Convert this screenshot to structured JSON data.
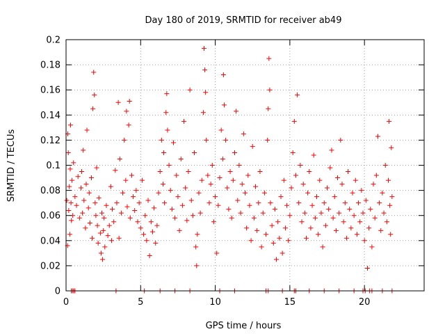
{
  "chart_data": {
    "type": "scatter",
    "title": "Day 180 of 2019, SRMTID for receiver ab49",
    "xlabel": "GPS time / hours",
    "ylabel": "SRMTID / TECUs",
    "xlim": [
      0,
      24
    ],
    "ylim": [
      0,
      0.2
    ],
    "xticks": [
      0,
      5,
      10,
      15,
      20
    ],
    "yticks": [
      0,
      0.02,
      0.04,
      0.06,
      0.08,
      0.1,
      0.12,
      0.14,
      0.16,
      0.18,
      0.2
    ],
    "ytick_labels": [
      "0",
      "0.02",
      "0.04",
      "0.06",
      "0.08",
      "0.1",
      "0.12",
      "0.14",
      "0.16",
      "0.18",
      "0.2"
    ],
    "xtick_labels": [
      "0",
      "5",
      "10",
      "15",
      "20"
    ],
    "grid": true,
    "marker": "+",
    "color": "#ff0000",
    "series": [
      {
        "name": "SRMTID",
        "points": [
          [
            0.05,
            0.072
          ],
          [
            0.1,
            0.036
          ],
          [
            0.12,
            0.125
          ],
          [
            0.15,
            0.11
          ],
          [
            0.18,
            0.064
          ],
          [
            0.22,
            0.083
          ],
          [
            0.25,
            0.045
          ],
          [
            0.28,
            0.097
          ],
          [
            0.3,
            0.132
          ],
          [
            0.33,
            0.07
          ],
          [
            0.36,
            0.056
          ],
          [
            0.4,
            0.088
          ],
          [
            0.45,
            0.06
          ],
          [
            0.5,
            0.102
          ],
          [
            0.6,
            0.075
          ],
          [
            0.7,
            0.068
          ],
          [
            0.8,
            0.091
          ],
          [
            0.9,
            0.058
          ],
          [
            1.0,
            0.082
          ],
          [
            1.05,
            0.095
          ],
          [
            1.1,
            0.062
          ],
          [
            1.15,
            0.112
          ],
          [
            1.2,
            0.072
          ],
          [
            1.3,
            0.05
          ],
          [
            1.35,
            0.085
          ],
          [
            1.4,
            0.128
          ],
          [
            1.5,
            0.066
          ],
          [
            1.55,
            0.078
          ],
          [
            1.6,
            0.054
          ],
          [
            1.7,
            0.09
          ],
          [
            1.75,
            0.042
          ],
          [
            1.8,
            0.145
          ],
          [
            1.85,
            0.174
          ],
          [
            1.9,
            0.156
          ],
          [
            1.95,
            0.07
          ],
          [
            2.0,
            0.06
          ],
          [
            2.05,
            0.098
          ],
          [
            2.1,
            0.052
          ],
          [
            2.15,
            0.038
          ],
          [
            2.2,
            0.074
          ],
          [
            2.3,
            0.046
          ],
          [
            2.35,
            0.03
          ],
          [
            2.4,
            0.062
          ],
          [
            2.45,
            0.025
          ],
          [
            2.5,
            0.048
          ],
          [
            2.55,
            0.058
          ],
          [
            2.6,
            0.035
          ],
          [
            2.7,
            0.068
          ],
          [
            2.8,
            0.044
          ],
          [
            2.9,
            0.052
          ],
          [
            3.0,
            0.083
          ],
          [
            3.05,
            0.04
          ],
          [
            3.1,
            0.065
          ],
          [
            3.2,
            0.055
          ],
          [
            3.3,
            0.096
          ],
          [
            3.4,
            0.07
          ],
          [
            3.5,
            0.15
          ],
          [
            3.55,
            0.042
          ],
          [
            3.6,
            0.105
          ],
          [
            3.7,
            0.062
          ],
          [
            3.8,
            0.078
          ],
          [
            3.9,
            0.12
          ],
          [
            4.0,
            0.088
          ],
          [
            4.05,
            0.143
          ],
          [
            4.1,
            0.067
          ],
          [
            4.2,
            0.132
          ],
          [
            4.25,
            0.151
          ],
          [
            4.3,
            0.058
          ],
          [
            4.4,
            0.092
          ],
          [
            4.5,
            0.075
          ],
          [
            4.6,
            0.064
          ],
          [
            4.7,
            0.08
          ],
          [
            4.8,
            0.055
          ],
          [
            4.9,
            0.07
          ],
          [
            5.0,
            0.05
          ],
          [
            5.1,
            0.088
          ],
          [
            5.2,
            0.045
          ],
          [
            5.3,
            0.06
          ],
          [
            5.4,
            0.04
          ],
          [
            5.5,
            0.072
          ],
          [
            5.6,
            0.028
          ],
          [
            5.7,
            0.055
          ],
          [
            5.8,
            0.047
          ],
          [
            5.9,
            0.066
          ],
          [
            6.0,
            0.038
          ],
          [
            6.1,
            0.052
          ],
          [
            6.2,
            0.078
          ],
          [
            6.3,
            0.095
          ],
          [
            6.4,
            0.12
          ],
          [
            6.5,
            0.085
          ],
          [
            6.55,
            0.11
          ],
          [
            6.6,
            0.07
          ],
          [
            6.7,
            0.142
          ],
          [
            6.75,
            0.157
          ],
          [
            6.8,
            0.128
          ],
          [
            6.9,
            0.1
          ],
          [
            7.0,
            0.08
          ],
          [
            7.1,
            0.065
          ],
          [
            7.2,
            0.118
          ],
          [
            7.3,
            0.058
          ],
          [
            7.4,
            0.092
          ],
          [
            7.5,
            0.075
          ],
          [
            7.6,
            0.048
          ],
          [
            7.7,
            0.105
          ],
          [
            7.8,
            0.068
          ],
          [
            7.9,
            0.135
          ],
          [
            8.0,
            0.082
          ],
          [
            8.1,
            0.056
          ],
          [
            8.2,
            0.095
          ],
          [
            8.3,
            0.16
          ],
          [
            8.4,
            0.072
          ],
          [
            8.5,
            0.06
          ],
          [
            8.6,
            0.11
          ],
          [
            8.7,
            0.035
          ],
          [
            8.75,
            0.02
          ],
          [
            8.8,
            0.045
          ],
          [
            8.9,
            0.078
          ],
          [
            9.0,
            0.062
          ],
          [
            9.1,
            0.088
          ],
          [
            9.2,
            0.142
          ],
          [
            9.25,
            0.193
          ],
          [
            9.3,
            0.176
          ],
          [
            9.35,
            0.158
          ],
          [
            9.4,
            0.12
          ],
          [
            9.5,
            0.092
          ],
          [
            9.6,
            0.07
          ],
          [
            9.7,
            0.085
          ],
          [
            9.8,
            0.1
          ],
          [
            9.9,
            0.055
          ],
          [
            10.0,
            0.075
          ],
          [
            10.1,
            0.03
          ],
          [
            10.2,
            0.068
          ],
          [
            10.3,
            0.09
          ],
          [
            10.4,
            0.128
          ],
          [
            10.5,
            0.105
          ],
          [
            10.55,
            0.172
          ],
          [
            10.6,
            0.148
          ],
          [
            10.7,
            0.12
          ],
          [
            10.8,
            0.082
          ],
          [
            10.9,
            0.065
          ],
          [
            11.0,
            0.095
          ],
          [
            11.1,
            0.058
          ],
          [
            11.2,
            0.088
          ],
          [
            11.3,
            0.11
          ],
          [
            11.4,
            0.143
          ],
          [
            11.5,
            0.072
          ],
          [
            11.6,
            0.1
          ],
          [
            11.7,
            0.062
          ],
          [
            11.8,
            0.085
          ],
          [
            11.9,
            0.125
          ],
          [
            12.0,
            0.078
          ],
          [
            12.1,
            0.05
          ],
          [
            12.2,
            0.092
          ],
          [
            12.3,
            0.068
          ],
          [
            12.4,
            0.04
          ],
          [
            12.5,
            0.115
          ],
          [
            12.6,
            0.058
          ],
          [
            12.7,
            0.083
          ],
          [
            12.8,
            0.048
          ],
          [
            12.9,
            0.07
          ],
          [
            13.0,
            0.095
          ],
          [
            13.1,
            0.035
          ],
          [
            13.2,
            0.062
          ],
          [
            13.3,
            0.078
          ],
          [
            13.4,
            0.045
          ],
          [
            13.5,
            0.12
          ],
          [
            13.55,
            0.145
          ],
          [
            13.6,
            0.185
          ],
          [
            13.65,
            0.16
          ],
          [
            13.7,
            0.07
          ],
          [
            13.8,
            0.052
          ],
          [
            13.9,
            0.038
          ],
          [
            14.0,
            0.065
          ],
          [
            14.1,
            0.025
          ],
          [
            14.2,
            0.055
          ],
          [
            14.3,
            0.042
          ],
          [
            14.4,
            0.075
          ],
          [
            14.5,
            0.03
          ],
          [
            14.6,
            0.088
          ],
          [
            14.7,
            0.05
          ],
          [
            14.8,
            0.068
          ],
          [
            14.9,
            0.04
          ],
          [
            15.0,
            0.06
          ],
          [
            15.1,
            0.082
          ],
          [
            15.2,
            0.11
          ],
          [
            15.3,
            0.135
          ],
          [
            15.4,
            0.092
          ],
          [
            15.5,
            0.156
          ],
          [
            15.6,
            0.07
          ],
          [
            15.7,
            0.1
          ],
          [
            15.8,
            0.055
          ],
          [
            15.9,
            0.085
          ],
          [
            16.0,
            0.062
          ],
          [
            16.1,
            0.042
          ],
          [
            16.2,
            0.078
          ],
          [
            16.3,
            0.095
          ],
          [
            16.4,
            0.05
          ],
          [
            16.5,
            0.068
          ],
          [
            16.6,
            0.108
          ],
          [
            16.7,
            0.058
          ],
          [
            16.8,
            0.075
          ],
          [
            16.9,
            0.045
          ],
          [
            17.0,
            0.088
          ],
          [
            17.1,
            0.062
          ],
          [
            17.2,
            0.035
          ],
          [
            17.3,
            0.07
          ],
          [
            17.4,
            0.052
          ],
          [
            17.5,
            0.082
          ],
          [
            17.6,
            0.065
          ],
          [
            17.7,
            0.098
          ],
          [
            17.8,
            0.112
          ],
          [
            17.9,
            0.058
          ],
          [
            18.0,
            0.075
          ],
          [
            18.1,
            0.048
          ],
          [
            18.2,
            0.09
          ],
          [
            18.3,
            0.062
          ],
          [
            18.4,
            0.12
          ],
          [
            18.5,
            0.085
          ],
          [
            18.6,
            0.055
          ],
          [
            18.7,
            0.07
          ],
          [
            18.8,
            0.042
          ],
          [
            18.9,
            0.095
          ],
          [
            19.0,
            0.065
          ],
          [
            19.1,
            0.05
          ],
          [
            19.2,
            0.078
          ],
          [
            19.3,
            0.06
          ],
          [
            19.4,
            0.088
          ],
          [
            19.5,
            0.045
          ],
          [
            19.6,
            0.07
          ],
          [
            19.7,
            0.055
          ],
          [
            19.8,
            0.08
          ],
          [
            19.9,
            0.062
          ],
          [
            20.0,
            0.04
          ],
          [
            20.1,
            0.072
          ],
          [
            20.2,
            0.018
          ],
          [
            20.3,
            0.05
          ],
          [
            20.4,
            0.065
          ],
          [
            20.5,
            0.035
          ],
          [
            20.6,
            0.085
          ],
          [
            20.7,
            0.058
          ],
          [
            20.8,
            0.092
          ],
          [
            20.9,
            0.123
          ],
          [
            21.0,
            0.07
          ],
          [
            21.1,
            0.048
          ],
          [
            21.2,
            0.078
          ],
          [
            21.3,
            0.062
          ],
          [
            21.4,
            0.1
          ],
          [
            21.5,
            0.055
          ],
          [
            21.6,
            0.088
          ],
          [
            21.65,
            0.135
          ],
          [
            21.7,
            0.068
          ],
          [
            21.75,
            0.045
          ],
          [
            21.8,
            0.114
          ],
          [
            21.85,
            0.075
          ],
          [
            0.35,
            0.0
          ],
          [
            0.45,
            0.0
          ],
          [
            0.52,
            0.0
          ],
          [
            0.6,
            0.0
          ],
          [
            3.35,
            0.0
          ],
          [
            5.25,
            0.0
          ],
          [
            6.3,
            0.0
          ],
          [
            7.3,
            0.0
          ],
          [
            8.3,
            0.0
          ],
          [
            10.3,
            0.0
          ],
          [
            11.3,
            0.0
          ],
          [
            13.4,
            0.0
          ],
          [
            13.55,
            0.0
          ],
          [
            14.5,
            0.0
          ],
          [
            15.3,
            0.0
          ],
          [
            15.4,
            0.0
          ],
          [
            16.3,
            0.0
          ],
          [
            17.3,
            0.0
          ],
          [
            18.3,
            0.0
          ],
          [
            19.3,
            0.0
          ],
          [
            19.9,
            0.0
          ],
          [
            20.05,
            0.0
          ],
          [
            20.35,
            0.0
          ],
          [
            20.5,
            0.0
          ],
          [
            21.2,
            0.0
          ],
          [
            21.85,
            0.0
          ]
        ]
      }
    ]
  }
}
